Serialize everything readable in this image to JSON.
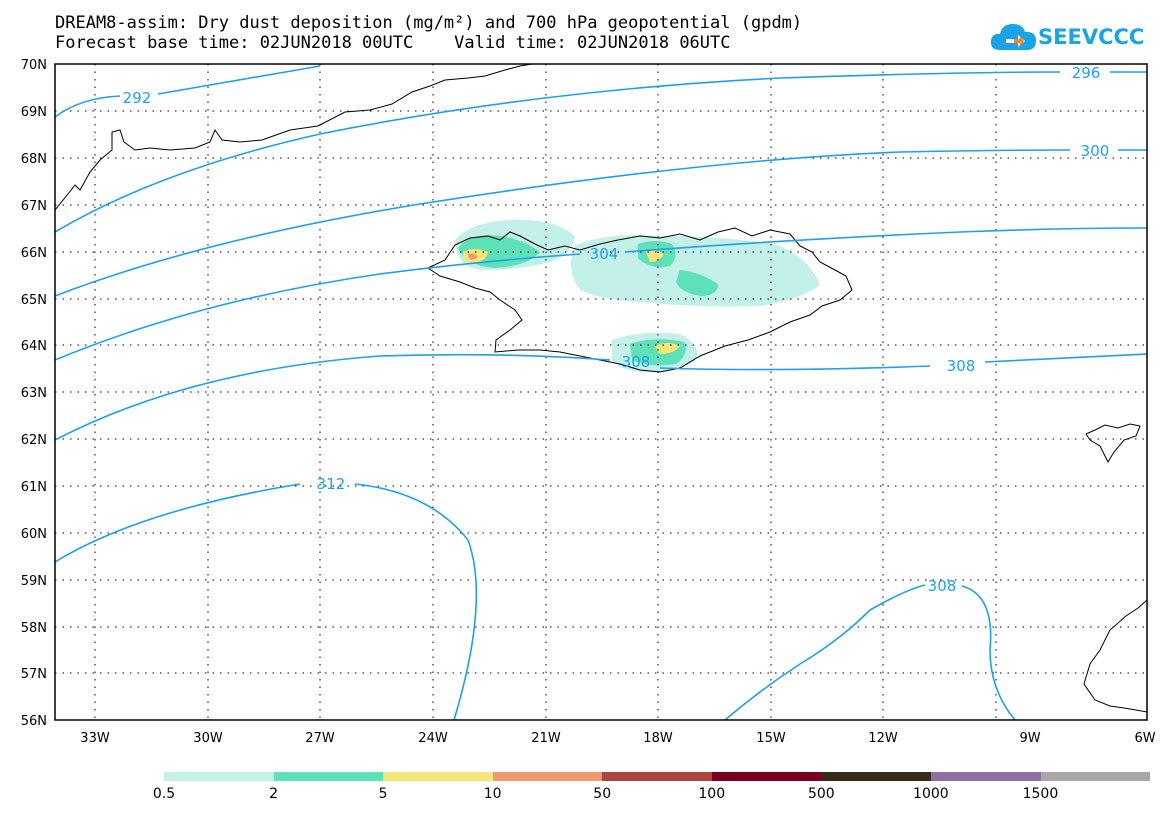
{
  "title": {
    "line1": "DREAM8-assim: Dry dust deposition (mg/m²) and 700 hPa geopotential (gpdm)",
    "line2": "Forecast base time: 02JUN2018 00UTC    Valid time: 02JUN2018 06UTC"
  },
  "logo": {
    "text": "SEEVCCC",
    "icon": "cloud-arrow-icon",
    "color": "#1aa3e6"
  },
  "map": {
    "lat_labels": [
      "70N",
      "69N",
      "68N",
      "67N",
      "66N",
      "65N",
      "64N",
      "63N",
      "62N",
      "61N",
      "60N",
      "59N",
      "58N",
      "57N",
      "56N"
    ],
    "lon_labels": [
      "33W",
      "30W",
      "27W",
      "24W",
      "21W",
      "18W",
      "15W",
      "12W",
      "9W",
      "6W"
    ],
    "contour_labels": [
      "292",
      "296",
      "300",
      "304",
      "308",
      "308",
      "312",
      "308"
    ],
    "contour_color": "#1ea0ea"
  },
  "legend": {
    "labels": [
      "0.5",
      "2",
      "5",
      "10",
      "50",
      "100",
      "500",
      "1000",
      "1500"
    ],
    "colors": [
      "#c4f0ea",
      "#5ee0b8",
      "#f5e67a",
      "#ef9a6e",
      "#a9463e",
      "#7a0020",
      "#3a2a1a",
      "#8e6fa0",
      "#a8a8a8"
    ]
  }
}
